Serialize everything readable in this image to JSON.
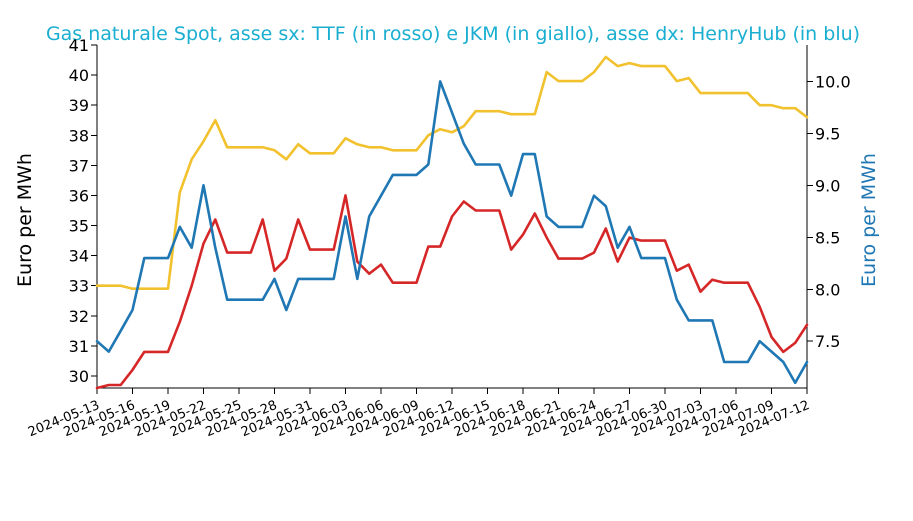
{
  "chart_data": {
    "type": "line",
    "title": "Gas naturale Spot, asse sx: TTF (in rosso) e JKM (in giallo), asse dx: HenryHub (in blu)",
    "ylabel_left": "Euro per MWh",
    "ylabel_right": "Euro per MWh",
    "ylim_left": [
      29.6,
      41
    ],
    "ylim_right": [
      7.05,
      10.35
    ],
    "yticks_left": [
      30,
      31,
      32,
      33,
      34,
      35,
      36,
      37,
      38,
      39,
      40,
      41
    ],
    "yticks_right": [
      7.5,
      8.0,
      8.5,
      9.0,
      9.5,
      10.0
    ],
    "yticklabels_right": [
      "7.5",
      "8.0",
      "8.5",
      "9.0",
      "9.5",
      "10.0"
    ],
    "x_start": "2024-05-13",
    "x_end": "2024-07-12",
    "xticks": [
      "2024-05-13",
      "2024-05-16",
      "2024-05-19",
      "2024-05-22",
      "2024-05-25",
      "2024-05-28",
      "2024-05-31",
      "2024-06-03",
      "2024-06-06",
      "2024-06-09",
      "2024-06-12",
      "2024-06-15",
      "2024-06-18",
      "2024-06-21",
      "2024-06-24",
      "2024-06-27",
      "2024-06-30",
      "2024-07-03",
      "2024-07-06",
      "2024-07-09",
      "2024-07-12"
    ],
    "series": [
      {
        "axis": "left",
        "color": "#d62728",
        "x": [
          "2024-05-13",
          "2024-05-14",
          "2024-05-15",
          "2024-05-16",
          "2024-05-17",
          "2024-05-18",
          "2024-05-19",
          "2024-05-20",
          "2024-05-21",
          "2024-05-22",
          "2024-05-23",
          "2024-05-24",
          "2024-05-25",
          "2024-05-26",
          "2024-05-27",
          "2024-05-28",
          "2024-05-29",
          "2024-05-30",
          "2024-05-31",
          "2024-06-01",
          "2024-06-02",
          "2024-06-03",
          "2024-06-04",
          "2024-06-05",
          "2024-06-06",
          "2024-06-07",
          "2024-06-08",
          "2024-06-09",
          "2024-06-10",
          "2024-06-11",
          "2024-06-12",
          "2024-06-13",
          "2024-06-14",
          "2024-06-15",
          "2024-06-16",
          "2024-06-17",
          "2024-06-18",
          "2024-06-19",
          "2024-06-20",
          "2024-06-21",
          "2024-06-22",
          "2024-06-23",
          "2024-06-24",
          "2024-06-25",
          "2024-06-26",
          "2024-06-27",
          "2024-06-28",
          "2024-06-29",
          "2024-06-30",
          "2024-07-01",
          "2024-07-02",
          "2024-07-03",
          "2024-07-04",
          "2024-07-05",
          "2024-07-06",
          "2024-07-07",
          "2024-07-08",
          "2024-07-09",
          "2024-07-10",
          "2024-07-11",
          "2024-07-12"
        ],
        "values": [
          29.6,
          29.7,
          29.7,
          30.2,
          30.8,
          30.8,
          30.8,
          31.8,
          33.0,
          34.4,
          35.2,
          34.1,
          34.1,
          34.1,
          35.2,
          33.5,
          33.9,
          35.2,
          34.2,
          34.2,
          34.2,
          36.0,
          33.8,
          33.4,
          33.7,
          33.1,
          33.1,
          33.1,
          34.3,
          34.3,
          35.3,
          35.8,
          35.5,
          35.5,
          35.5,
          34.2,
          34.7,
          35.4,
          34.6,
          33.9,
          33.9,
          33.9,
          34.1,
          34.9,
          33.8,
          34.6,
          34.5,
          34.5,
          34.5,
          33.5,
          33.7,
          32.8,
          33.2,
          33.1,
          33.1,
          33.1,
          32.3,
          31.3,
          30.8,
          31.1,
          31.7
        ]
      },
      {
        "axis": "left",
        "color": "#f2c12e",
        "x": [
          "2024-05-13",
          "2024-05-14",
          "2024-05-15",
          "2024-05-16",
          "2024-05-17",
          "2024-05-18",
          "2024-05-19",
          "2024-05-20",
          "2024-05-21",
          "2024-05-22",
          "2024-05-23",
          "2024-05-24",
          "2024-05-25",
          "2024-05-26",
          "2024-05-27",
          "2024-05-28",
          "2024-05-29",
          "2024-05-30",
          "2024-05-31",
          "2024-06-01",
          "2024-06-02",
          "2024-06-03",
          "2024-06-04",
          "2024-06-05",
          "2024-06-06",
          "2024-06-07",
          "2024-06-08",
          "2024-06-09",
          "2024-06-10",
          "2024-06-11",
          "2024-06-12",
          "2024-06-13",
          "2024-06-14",
          "2024-06-15",
          "2024-06-16",
          "2024-06-17",
          "2024-06-18",
          "2024-06-19",
          "2024-06-20",
          "2024-06-21",
          "2024-06-22",
          "2024-06-23",
          "2024-06-24",
          "2024-06-25",
          "2024-06-26",
          "2024-06-27",
          "2024-06-28",
          "2024-06-29",
          "2024-06-30",
          "2024-07-01",
          "2024-07-02",
          "2024-07-03",
          "2024-07-04",
          "2024-07-05",
          "2024-07-06",
          "2024-07-07",
          "2024-07-08",
          "2024-07-09",
          "2024-07-10",
          "2024-07-11",
          "2024-07-12"
        ],
        "values": [
          33.0,
          33.0,
          33.0,
          32.9,
          32.9,
          32.9,
          32.9,
          36.1,
          37.2,
          37.8,
          38.5,
          37.6,
          37.6,
          37.6,
          37.6,
          37.5,
          37.2,
          37.7,
          37.4,
          37.4,
          37.4,
          37.9,
          37.7,
          37.6,
          37.6,
          37.5,
          37.5,
          37.5,
          38.0,
          38.2,
          38.1,
          38.3,
          38.8,
          38.8,
          38.8,
          38.7,
          38.7,
          38.7,
          40.1,
          39.8,
          39.8,
          39.8,
          40.1,
          40.6,
          40.3,
          40.4,
          40.3,
          40.3,
          40.3,
          39.8,
          39.9,
          39.4,
          39.4,
          39.4,
          39.4,
          39.4,
          39.0,
          39.0,
          38.9,
          38.9,
          38.6
        ]
      },
      {
        "axis": "right",
        "color": "#1f77b4",
        "x": [
          "2024-05-13",
          "2024-05-14",
          "2024-05-15",
          "2024-05-16",
          "2024-05-17",
          "2024-05-18",
          "2024-05-19",
          "2024-05-20",
          "2024-05-21",
          "2024-05-22",
          "2024-05-23",
          "2024-05-24",
          "2024-05-25",
          "2024-05-26",
          "2024-05-27",
          "2024-05-28",
          "2024-05-29",
          "2024-05-30",
          "2024-05-31",
          "2024-06-01",
          "2024-06-02",
          "2024-06-03",
          "2024-06-04",
          "2024-06-05",
          "2024-06-06",
          "2024-06-07",
          "2024-06-08",
          "2024-06-09",
          "2024-06-10",
          "2024-06-11",
          "2024-06-12",
          "2024-06-13",
          "2024-06-14",
          "2024-06-15",
          "2024-06-16",
          "2024-06-17",
          "2024-06-18",
          "2024-06-19",
          "2024-06-20",
          "2024-06-21",
          "2024-06-22",
          "2024-06-23",
          "2024-06-24",
          "2024-06-25",
          "2024-06-26",
          "2024-06-27",
          "2024-06-28",
          "2024-06-29",
          "2024-06-30",
          "2024-07-01",
          "2024-07-02",
          "2024-07-03",
          "2024-07-04",
          "2024-07-05",
          "2024-07-06",
          "2024-07-07",
          "2024-07-08",
          "2024-07-09",
          "2024-07-10",
          "2024-07-11",
          "2024-07-12"
        ],
        "values": [
          7.5,
          7.4,
          7.6,
          7.8,
          8.3,
          8.3,
          8.3,
          8.6,
          8.4,
          9.0,
          8.4,
          7.9,
          7.9,
          7.9,
          7.9,
          8.1,
          7.8,
          8.1,
          8.1,
          8.1,
          8.1,
          8.7,
          8.1,
          8.7,
          8.9,
          9.1,
          9.1,
          9.1,
          9.2,
          10.0,
          9.7,
          9.4,
          9.2,
          9.2,
          9.2,
          8.9,
          9.3,
          9.3,
          8.7,
          8.6,
          8.6,
          8.6,
          8.9,
          8.8,
          8.4,
          8.6,
          8.3,
          8.3,
          8.3,
          7.9,
          7.7,
          7.7,
          7.7,
          7.3,
          7.3,
          7.3,
          7.5,
          7.4,
          7.3,
          7.1,
          7.3
        ]
      }
    ]
  }
}
